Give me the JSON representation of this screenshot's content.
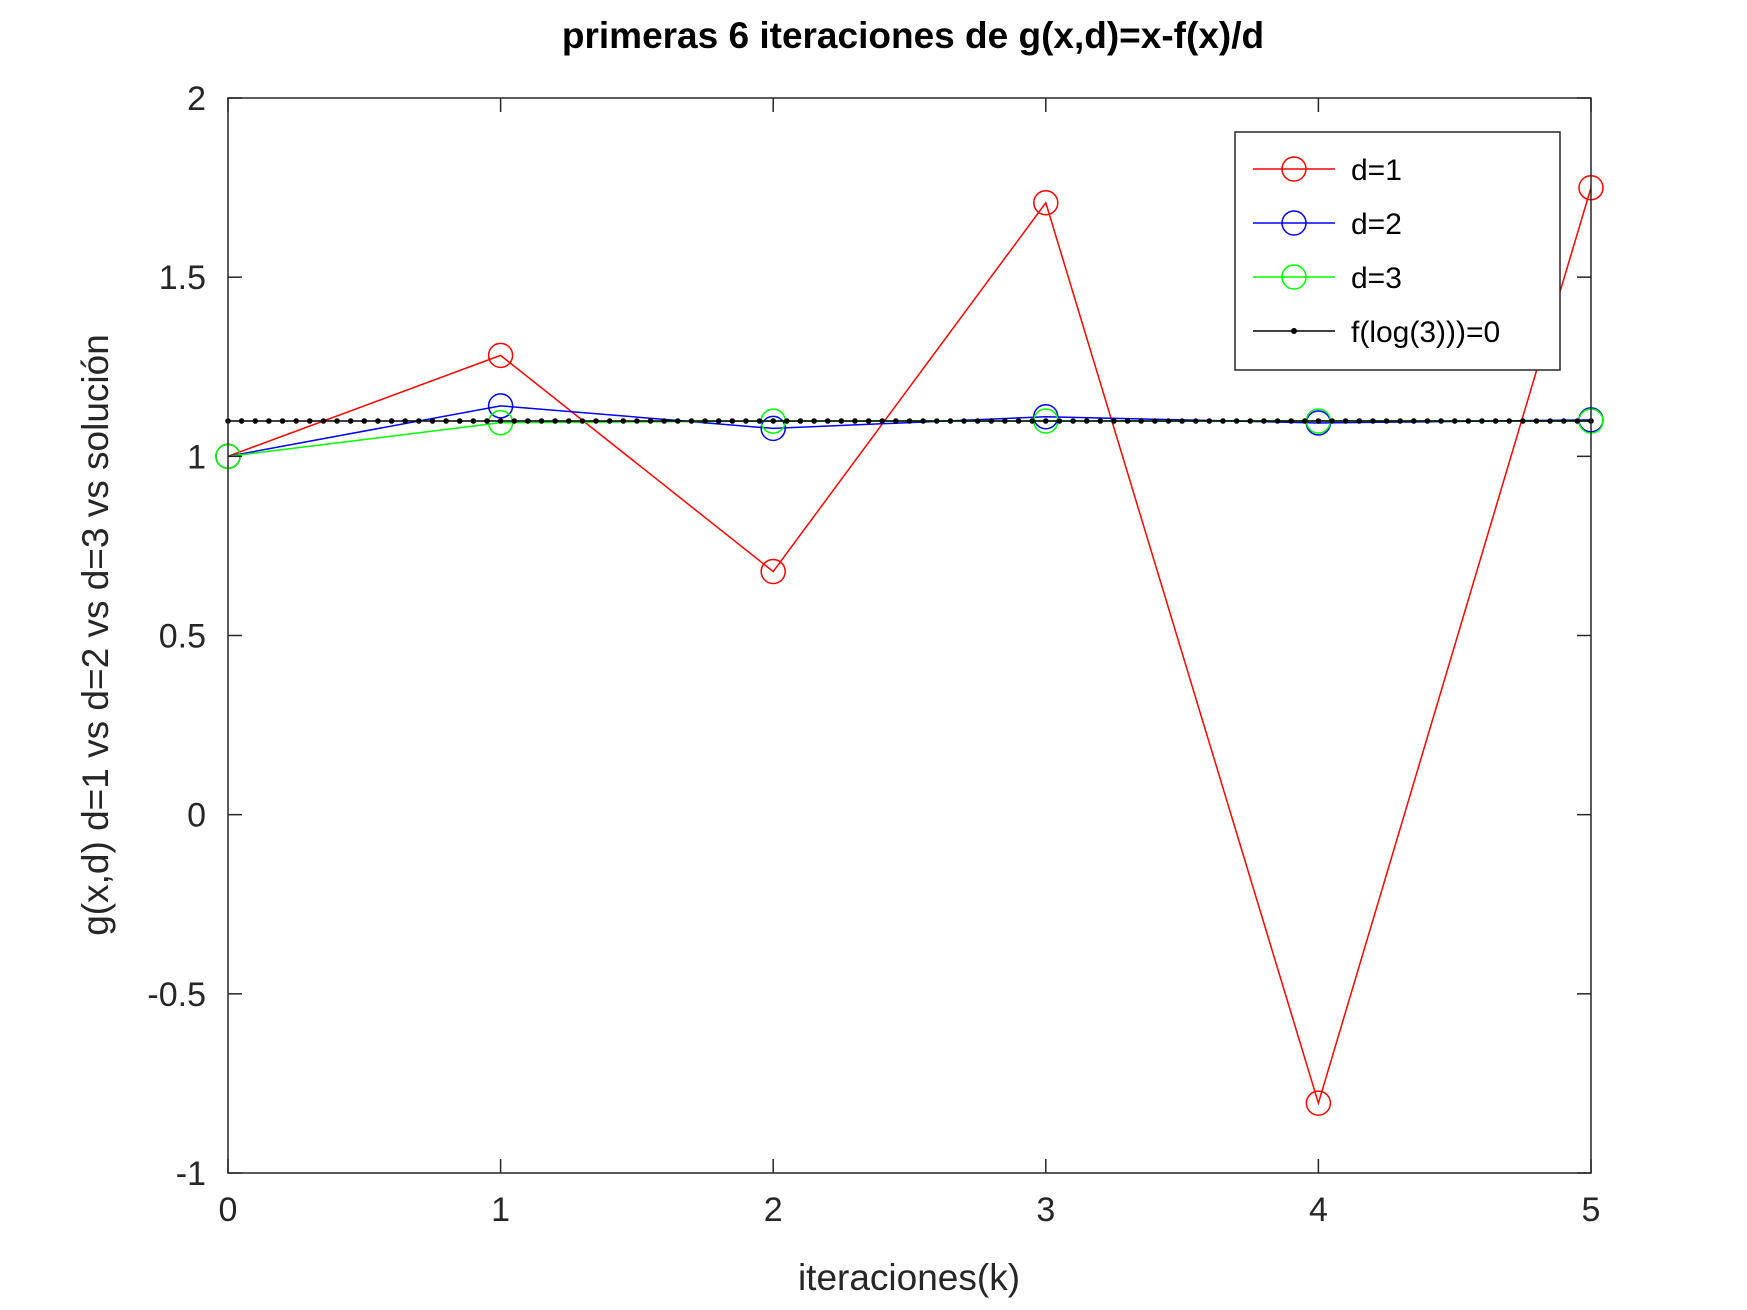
{
  "chart_data": {
    "type": "line",
    "title": "primeras 6 iteraciones de g(x,d)=x-f(x)/d",
    "xlabel": "iteraciones(k)",
    "ylabel": "g(x,d) d=1 vs d=2 vs d=3 vs solución",
    "xlim": [
      0,
      5
    ],
    "ylim": [
      -1,
      2
    ],
    "xticks": [
      "0",
      "1",
      "2",
      "3",
      "4",
      "5"
    ],
    "yticks": [
      "-1",
      "-0.5",
      "0",
      "0.5",
      "1",
      "1.5",
      "2"
    ],
    "x": [
      0,
      1,
      2,
      3,
      4,
      5
    ],
    "series": [
      {
        "name": "d=1",
        "color": "#ff0000",
        "marker": "circle",
        "values": [
          1.0,
          1.2817,
          0.6785,
          1.7076,
          -0.8051,
          1.7496
        ]
      },
      {
        "name": "d=2",
        "color": "#0000ff",
        "marker": "circle",
        "values": [
          1.0,
          1.1409,
          1.0779,
          1.1105,
          1.0931,
          1.1018
        ]
      },
      {
        "name": "d=3",
        "color": "#00ff00",
        "marker": "circle",
        "values": [
          1.0,
          1.0939,
          1.0984,
          1.0986,
          1.0986,
          1.0986
        ]
      },
      {
        "name": "f(log(3)))=0",
        "color": "#000000",
        "marker": "dot",
        "constant": 1.0986
      }
    ],
    "legend": {
      "position": "top-right",
      "entries": [
        "d=1",
        "d=2",
        "d=3",
        "f(log(3)))=0"
      ]
    },
    "grid": false
  }
}
